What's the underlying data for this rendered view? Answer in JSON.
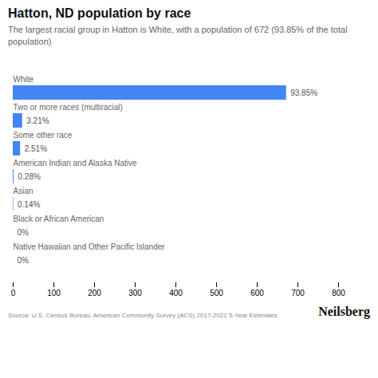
{
  "chart_data": {
    "type": "bar",
    "orientation": "horizontal",
    "title": "Hatton, ND population by race",
    "subtitle": "The largest racial group in Hatton is White, with a population of 672 (93.85% of the total\npopulation)",
    "categories": [
      "White",
      "Two or more races (multiracial)",
      "Some other race",
      "American Indian and Alaska Native",
      "Asian",
      "Black or African American",
      "Native Hawaiian and Other Pacific Islander"
    ],
    "values": [
      672,
      23,
      18,
      2,
      1,
      0,
      0
    ],
    "percentages": [
      "93.85%",
      "3.21%",
      "2.51%",
      "0.28%",
      "0.14%",
      "0%",
      "0%"
    ],
    "color": "#4285F4",
    "xlim": [
      0,
      800
    ],
    "xticks": [
      0,
      100,
      200,
      300,
      400,
      500,
      600,
      700,
      800
    ],
    "grid": false,
    "source": "Source: U.S. Census Bureau, American Community Survey (ACS) 2017-2021 5-Year Estimates",
    "brand": "Neilsberg"
  }
}
